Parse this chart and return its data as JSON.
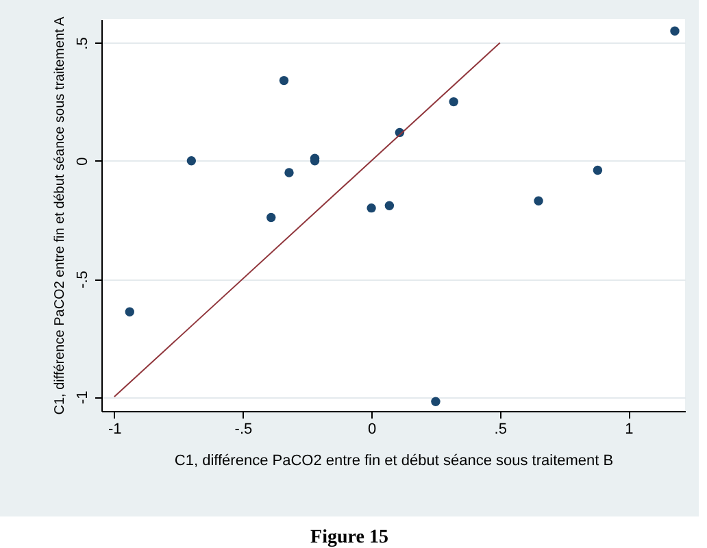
{
  "chart_data": {
    "type": "scatter",
    "xlabel": "C1, différence PaCO2 entre fin et début séance sous traitement B",
    "ylabel": "C1, différence PaCO2 entre fin et début séance sous traitement A",
    "annotations": [
      "Figure 15"
    ],
    "xlim": [
      -1.05,
      1.22
    ],
    "ylim": [
      -1.06,
      0.6
    ],
    "xticks": [
      {
        "value": -1,
        "label": "-1"
      },
      {
        "value": -0.5,
        "label": "-.5"
      },
      {
        "value": 0,
        "label": "0"
      },
      {
        "value": 0.5,
        "label": ".5"
      },
      {
        "value": 1,
        "label": "1"
      }
    ],
    "yticks": [
      {
        "value": -1,
        "label": "-1"
      },
      {
        "value": -0.5,
        "label": "-.5"
      },
      {
        "value": 0,
        "label": "0"
      },
      {
        "value": 0.5,
        "label": ".5"
      }
    ],
    "grid": "y",
    "series": [
      {
        "marker": "circle",
        "color": "#1a476f",
        "x": [
          -0.7,
          -0.34,
          -0.39,
          -0.32,
          -0.22,
          -0.22,
          0.0,
          0.07,
          0.11,
          0.32,
          0.65,
          0.88,
          1.18,
          -0.94,
          0.25
        ],
        "values": [
          0.0,
          0.34,
          -0.24,
          -0.05,
          0.01,
          0.0,
          -0.2,
          -0.19,
          0.12,
          0.25,
          -0.17,
          -0.04,
          0.55,
          -0.64,
          -1.02
        ]
      },
      {
        "type": "line",
        "color": "#90353b",
        "line_style": "solid",
        "x": [
          -1,
          0.5
        ],
        "values": [
          -1,
          0.5
        ]
      }
    ]
  }
}
